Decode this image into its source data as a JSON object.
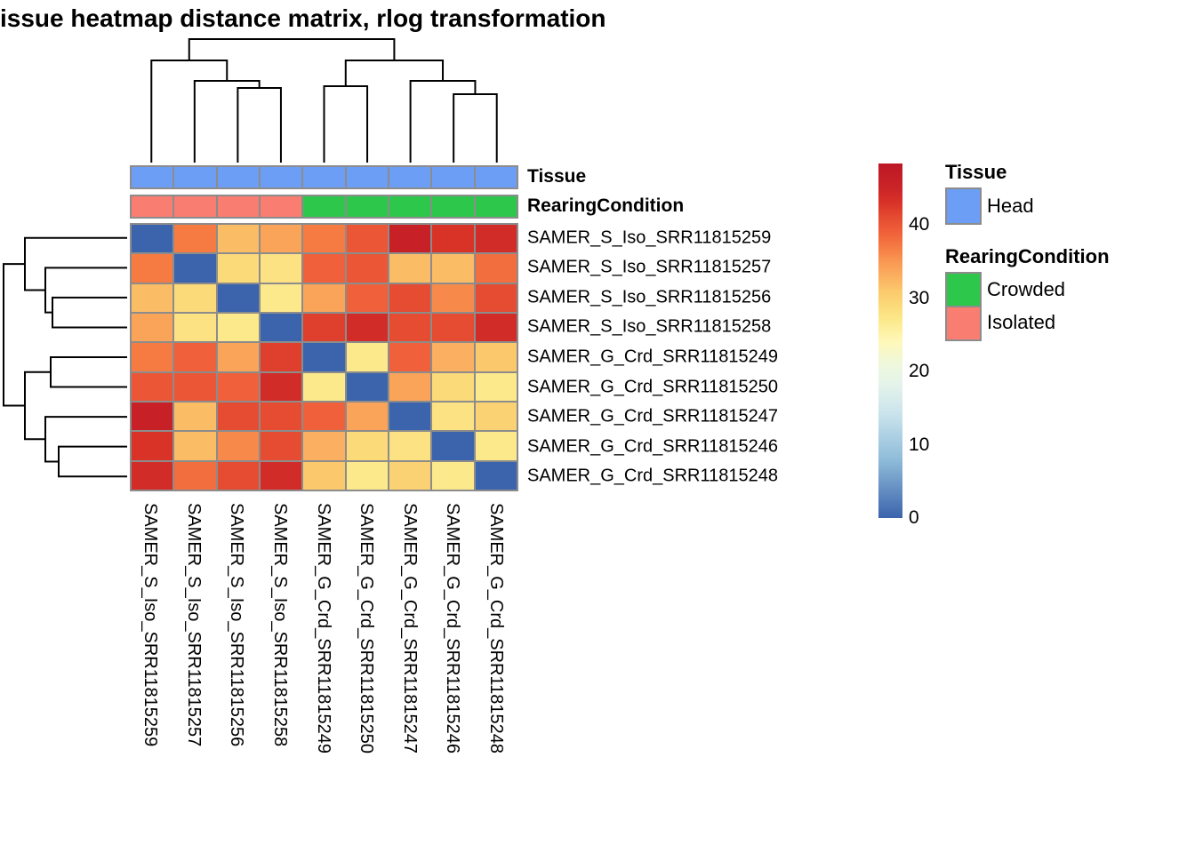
{
  "title": "issue heatmap distance matrix, rlog transformation",
  "annotation_rows": {
    "tissue": "Tissue",
    "rearing": "RearingCondition"
  },
  "legend": {
    "tissue_title": "Tissue",
    "tissue_items": [
      {
        "label": "Head",
        "color": "#6C9EF5"
      }
    ],
    "rearing_title": "RearingCondition",
    "rearing_items": [
      {
        "label": "Crowded",
        "color": "#2DC84B"
      },
      {
        "label": "Isolated",
        "color": "#FA7D72"
      }
    ],
    "colorbar_ticks": [
      40,
      30,
      20,
      10,
      0
    ]
  },
  "chart_data": {
    "type": "heatmap",
    "title": "issue heatmap distance matrix, rlog transformation",
    "row_labels": [
      "SAMER_S_Iso_SRR11815259",
      "SAMER_S_Iso_SRR11815257",
      "SAMER_S_Iso_SRR11815256",
      "SAMER_S_Iso_SRR11815258",
      "SAMER_G_Crd_SRR11815249",
      "SAMER_G_Crd_SRR11815250",
      "SAMER_G_Crd_SRR11815247",
      "SAMER_G_Crd_SRR11815246",
      "SAMER_G_Crd_SRR11815248"
    ],
    "col_labels": [
      "SAMER_S_Iso_SRR11815259",
      "SAMER_S_Iso_SRR11815257",
      "SAMER_S_Iso_SRR11815256",
      "SAMER_S_Iso_SRR11815258",
      "SAMER_G_Crd_SRR11815249",
      "SAMER_G_Crd_SRR11815250",
      "SAMER_G_Crd_SRR11815247",
      "SAMER_G_Crd_SRR11815246",
      "SAMER_G_Crd_SRR11815248"
    ],
    "matrix": [
      [
        0,
        37,
        32,
        34,
        37,
        40,
        46,
        43,
        44
      ],
      [
        37,
        0,
        29,
        28,
        39,
        40,
        32,
        32,
        38
      ],
      [
        32,
        29,
        0,
        27,
        34,
        39,
        41,
        36,
        41
      ],
      [
        34,
        28,
        27,
        0,
        42,
        44,
        41,
        41,
        44
      ],
      [
        37,
        39,
        34,
        42,
        0,
        27,
        39,
        33,
        31
      ],
      [
        40,
        40,
        39,
        44,
        27,
        0,
        34,
        29,
        27
      ],
      [
        46,
        32,
        41,
        41,
        39,
        34,
        0,
        28,
        30
      ],
      [
        43,
        32,
        36,
        41,
        33,
        29,
        28,
        0,
        27
      ],
      [
        44,
        38,
        41,
        44,
        31,
        27,
        30,
        27,
        0
      ]
    ],
    "column_annotations": {
      "Tissue": [
        "Head",
        "Head",
        "Head",
        "Head",
        "Head",
        "Head",
        "Head",
        "Head",
        "Head"
      ],
      "RearingCondition": [
        "Isolated",
        "Isolated",
        "Isolated",
        "Isolated",
        "Crowded",
        "Crowded",
        "Crowded",
        "Crowded",
        "Crowded"
      ]
    },
    "annotation_colors": {
      "Head": "#6C9EF5",
      "Crowded": "#2DC84B",
      "Isolated": "#FA7D72"
    },
    "colorbar": {
      "min": 0,
      "max": 48.4,
      "ticks": [
        0,
        10,
        20,
        30,
        40
      ],
      "colormap": "RdYlBu reversed (blue = low distance, red = high distance)",
      "stops": [
        [
          0,
          "#3B64AC"
        ],
        [
          8,
          "#8FBCD9"
        ],
        [
          14,
          "#C8E2EC"
        ],
        [
          18,
          "#E3F3EB"
        ],
        [
          21,
          "#EEF8DC"
        ],
        [
          24,
          "#FEF8BA"
        ],
        [
          27,
          "#FCE98C"
        ],
        [
          29,
          "#FBDA79"
        ],
        [
          31,
          "#FBC96C"
        ],
        [
          33,
          "#FBAF60"
        ],
        [
          35,
          "#F99853"
        ],
        [
          37,
          "#F57B43"
        ],
        [
          39,
          "#F0603A"
        ],
        [
          41,
          "#E54C31"
        ],
        [
          43,
          "#D93328"
        ],
        [
          45,
          "#CB2427"
        ],
        [
          48.4,
          "#BC1726"
        ]
      ]
    },
    "clustering": {
      "column_tree": "((SRR11815259,(SRR11815257,(SRR11815256,SRR11815258))),((SRR11815249,SRR11815250),(SRR11815247,(SRR11815246,SRR11815248))))",
      "row_tree": "((SRR11815259,(SRR11815257,(SRR11815256,SRR11815258))),((SRR11815249,SRR11815250),(SRR11815247,(SRR11815246,SRR11815248))))"
    },
    "grid_line_color": "#8C8C8C"
  }
}
